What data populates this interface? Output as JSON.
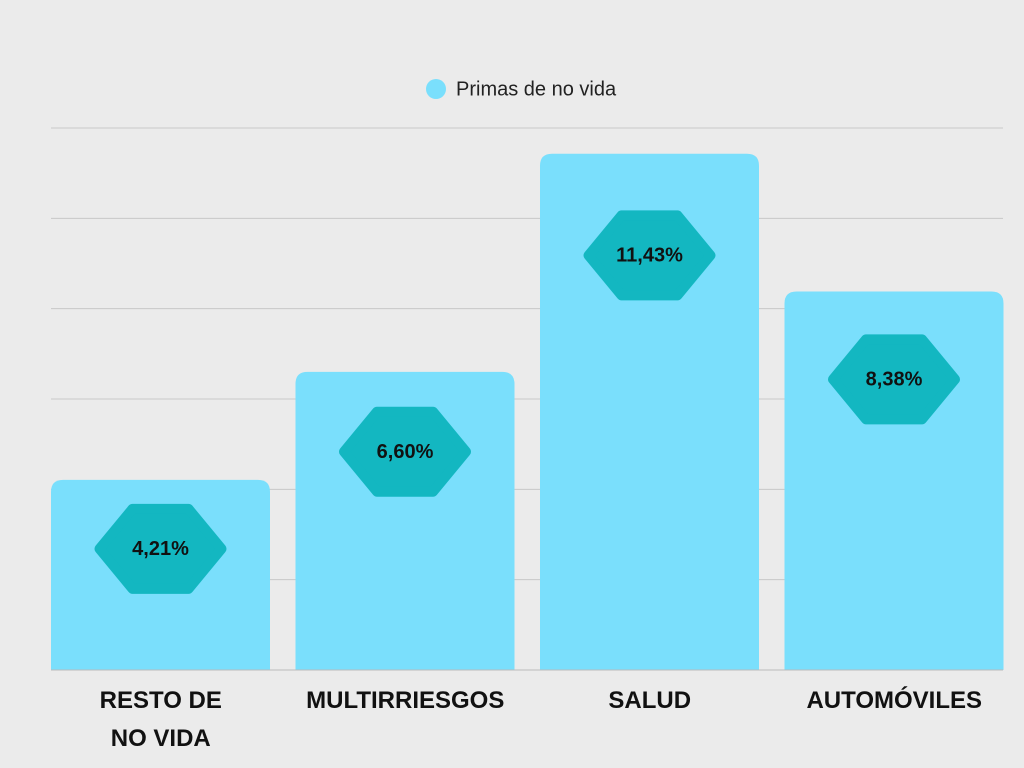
{
  "chart_data": {
    "type": "bar",
    "categories": [
      "RESTO DE\nNO VIDA",
      "MULTIRRIESGOS",
      "SALUD",
      "AUTOMÓVILES"
    ],
    "series": [
      {
        "name": "Primas de no vida",
        "color": "#7adffc",
        "values": [
          4.21,
          6.6,
          11.43,
          8.38
        ],
        "value_labels": [
          "4,21%",
          "6,60%",
          "11,43%",
          "8,38%"
        ]
      }
    ],
    "ylim": [
      0,
      12
    ],
    "yticks": [
      0,
      2,
      4,
      6,
      8,
      10,
      12
    ],
    "grid": true,
    "legend": "top",
    "label_color": "#13b7c1"
  }
}
